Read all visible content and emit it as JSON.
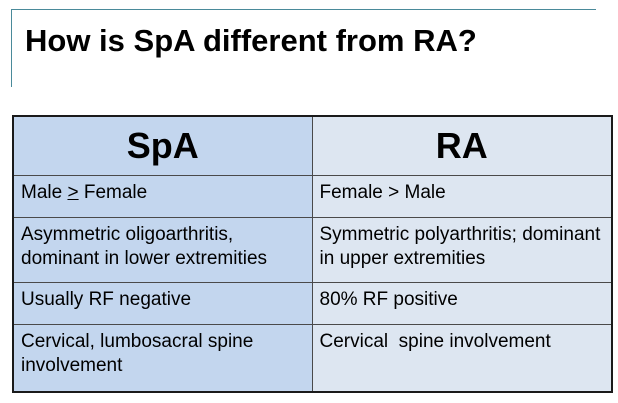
{
  "slide": {
    "title": "How is SpA different from RA?"
  },
  "table": {
    "headers": [
      "SpA",
      "RA"
    ],
    "rows": [
      {
        "spa": {
          "before": "Male ",
          "underlined": ">",
          "after": " Female"
        },
        "ra": "Female > Male"
      },
      {
        "spa": "Asymmetric oligoarthritis, dominant in lower extremities",
        "ra": "Symmetric polyarthritis; dominant in upper extremities"
      },
      {
        "spa": "Usually RF negative",
        "ra": "80% RF positive"
      },
      {
        "spa": "Cervical, lumbosacral spine involvement",
        "ra": "Cervical  spine involvement"
      }
    ]
  },
  "colors": {
    "spa_column": "#c3d6ee",
    "ra_column": "#dde6f1",
    "accent_line": "#4a8a9a"
  }
}
